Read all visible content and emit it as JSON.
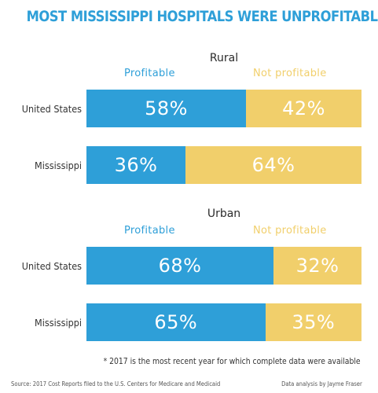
{
  "colors": {
    "profitable": "#2e9fd8",
    "not_profitable": "#f1cf6b",
    "title": "#2e9fd8"
  },
  "header": {
    "title": "MOST MISSISSIPPI HOSPITALS WERE UNPROFITABLE"
  },
  "chart_data": [
    {
      "type": "bar",
      "stacked": true,
      "orientation": "horizontal",
      "title": "Rural",
      "categories": [
        "United States",
        "Mississippi"
      ],
      "series": [
        {
          "name": "Profitable",
          "values": [
            58,
            36
          ],
          "labels": [
            "58%",
            "36%"
          ]
        },
        {
          "name": "Not profitable",
          "values": [
            42,
            64
          ],
          "labels": [
            "42%",
            "64%"
          ]
        }
      ],
      "xlim": [
        0,
        100
      ]
    },
    {
      "type": "bar",
      "stacked": true,
      "orientation": "horizontal",
      "title": "Urban",
      "categories": [
        "United States",
        "Mississippi"
      ],
      "series": [
        {
          "name": "Profitable",
          "values": [
            68,
            65
          ],
          "labels": [
            "68%",
            "65%"
          ]
        },
        {
          "name": "Not profitable",
          "values": [
            32,
            35
          ],
          "labels": [
            "32%",
            "35%"
          ]
        }
      ],
      "xlim": [
        0,
        100
      ]
    }
  ],
  "footnote": "* 2017 is the most recent year for which complete data were available",
  "source": "Source: 2017 Cost Reports filed to the U.S. Centers for Medicare and Medicaid",
  "credit": "Data analysis by Jayme Fraser"
}
